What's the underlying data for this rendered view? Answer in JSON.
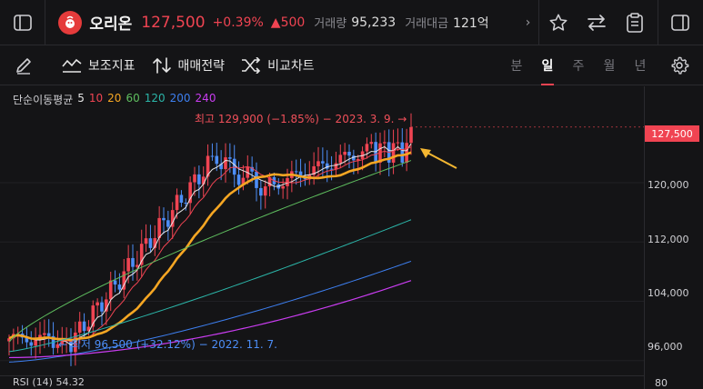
{
  "header": {
    "stock_name": "오리온",
    "price": "127,500",
    "change_pct": "+0.39%",
    "change_amt": "▲500",
    "volume_label": "거래량",
    "volume": "95,233",
    "amount_label": "거래대금",
    "amount": "121억"
  },
  "toolbar": {
    "indicators": "보조지표",
    "strategy": "매매전략",
    "compare": "비교차트",
    "periods": [
      "분",
      "일",
      "주",
      "월",
      "년"
    ],
    "active_period": "일"
  },
  "chart": {
    "ma_legend_title": "단순이동평균",
    "ma_legend": [
      {
        "label": "5",
        "color": "#e6e6e6"
      },
      {
        "label": "10",
        "color": "#f04452"
      },
      {
        "label": "20",
        "color": "#f5a623"
      },
      {
        "label": "60",
        "color": "#5fbf5f"
      },
      {
        "label": "120",
        "color": "#2bb5a8"
      },
      {
        "label": "200",
        "color": "#3d7ff0"
      },
      {
        "label": "240",
        "color": "#c93cf0"
      }
    ],
    "current_price_tag": "127,500",
    "y_axis_labels": [
      "120,000",
      "112,000",
      "104,000",
      "96,000"
    ],
    "high_annotation": "최고 129,900 (−1.85%) − 2023. 3. 9.",
    "low_annotation": "최저 96,500 (+32.12%) − 2022. 11. 7.",
    "sub_indicator": "RSI (14)   54.32",
    "sub_axis_label": "80",
    "colors": {
      "up": "#f04452",
      "down": "#4d8ef7",
      "arrow": "#f5b731"
    }
  },
  "chart_data": {
    "type": "candlestick",
    "y_range": [
      94000,
      133000
    ],
    "y_ticks": [
      96000,
      104000,
      112000,
      120000
    ],
    "current_price": 127500,
    "high": {
      "value": 129900,
      "date": "2023. 3. 9."
    },
    "low": {
      "value": 96500,
      "date": "2022. 11. 7."
    },
    "moving_averages": [
      5,
      10,
      20,
      60,
      120,
      200,
      240
    ]
  }
}
